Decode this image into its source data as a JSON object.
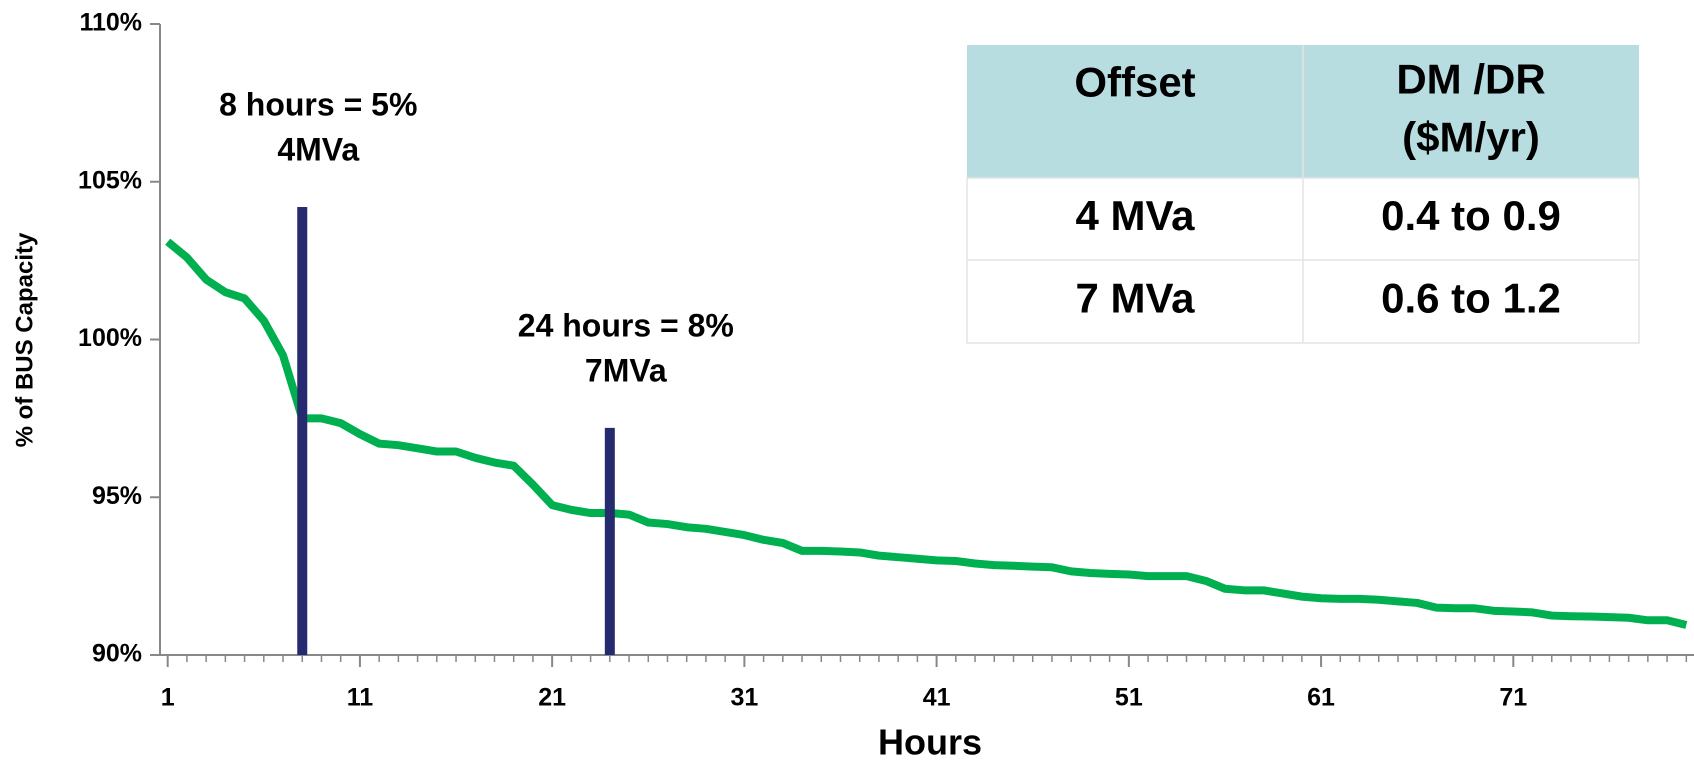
{
  "chart_data": {
    "type": "line",
    "x_label": "Hours",
    "y_label": "% of BUS Capacity",
    "x": [
      1,
      2,
      3,
      4,
      5,
      6,
      7,
      8,
      9,
      10,
      11,
      12,
      13,
      14,
      15,
      16,
      17,
      18,
      19,
      20,
      21,
      22,
      23,
      24,
      25,
      26,
      27,
      28,
      29,
      30,
      31,
      32,
      33,
      34,
      35,
      36,
      37,
      38,
      39,
      40,
      41,
      42,
      43,
      44,
      45,
      46,
      47,
      48,
      49,
      50,
      51,
      52,
      53,
      54,
      55,
      56,
      57,
      58,
      59,
      60,
      61,
      62,
      63,
      64,
      65,
      66,
      67,
      68,
      69,
      70,
      71,
      72,
      73,
      74,
      75,
      76,
      77,
      78,
      79,
      80
    ],
    "series": [
      {
        "color": "#00b050",
        "values": [
          103.1,
          102.6,
          101.9,
          101.5,
          101.3,
          100.6,
          99.5,
          97.5,
          97.5,
          97.35,
          97.0,
          96.7,
          96.65,
          96.55,
          96.45,
          96.45,
          96.25,
          96.1,
          96.0,
          95.4,
          94.75,
          94.6,
          94.5,
          94.5,
          94.45,
          94.2,
          94.15,
          94.05,
          94.0,
          93.9,
          93.8,
          93.65,
          93.55,
          93.3,
          93.3,
          93.28,
          93.25,
          93.15,
          93.1,
          93.05,
          93.0,
          92.98,
          92.9,
          92.85,
          92.83,
          92.8,
          92.78,
          92.65,
          92.6,
          92.57,
          92.55,
          92.5,
          92.5,
          92.5,
          92.35,
          92.1,
          92.05,
          92.05,
          91.95,
          91.85,
          91.8,
          91.78,
          91.78,
          91.75,
          91.7,
          91.65,
          91.5,
          91.48,
          91.48,
          91.4,
          91.38,
          91.35,
          91.25,
          91.23,
          91.22,
          91.2,
          91.18,
          91.1,
          91.1,
          90.95
        ]
      }
    ],
    "xlim": [
      0.6,
      80.4
    ],
    "xticks": [
      1,
      11,
      21,
      31,
      41,
      51,
      61,
      71
    ],
    "ylim": [
      90,
      110
    ],
    "yticks": [
      {
        "value": 90,
        "label": "90%"
      },
      {
        "value": 95,
        "label": "95%"
      },
      {
        "value": 100,
        "label": "100%"
      },
      {
        "value": 105,
        "label": "105%"
      },
      {
        "value": 110,
        "label": "110%"
      }
    ],
    "markers": [
      {
        "x": 8,
        "top": 104.2,
        "color": "#262a6e",
        "text": [
          "8 hours = 5%",
          "4MVa"
        ]
      },
      {
        "x": 24,
        "top": 97.2,
        "color": "#262a6e",
        "text": [
          "24 hours = 8%",
          "7MVa"
        ]
      }
    ],
    "table": {
      "columns": [
        [
          "Offset"
        ],
        [
          "DM /DR",
          "($M/yr)"
        ]
      ],
      "rows": [
        [
          "4 MVa",
          "0.4 to 0.9"
        ],
        [
          "7 MVa",
          "0.6 to 1.2"
        ]
      ]
    }
  }
}
